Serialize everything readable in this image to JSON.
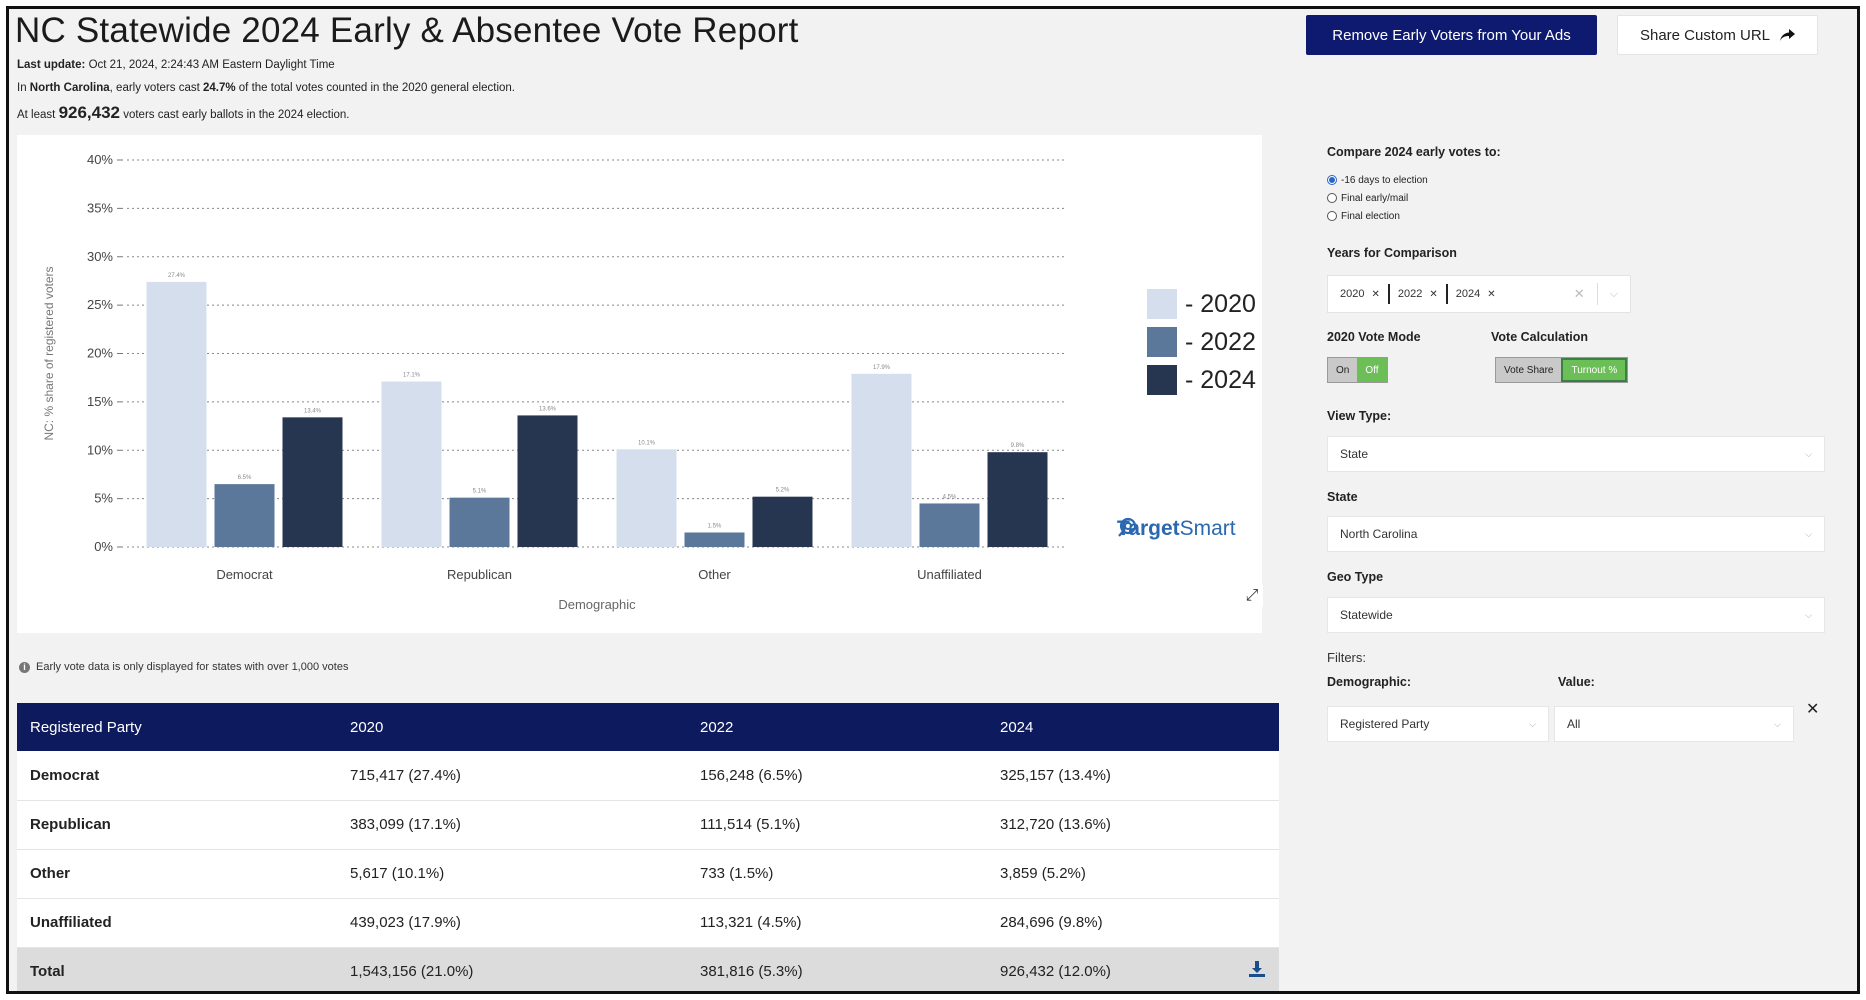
{
  "header": {
    "title": "NC Statewide 2024 Early & Absentee Vote Report",
    "last_update_label": "Last update:",
    "last_update_value": "Oct 21, 2024, 2:24:43 AM Eastern Daylight Time",
    "line2_pre": "In ",
    "line2_state": "North Carolina",
    "line2_mid": ", early voters cast ",
    "line2_pct": "24.7%",
    "line2_post": " of the total votes counted in the 2020 general election.",
    "line3_pre": "At least ",
    "line3_count": "926,432",
    "line3_post": " voters cast early ballots in the 2024 election."
  },
  "toolbar": {
    "remove_label": "Remove Early Voters from Your Ads",
    "share_label": "Share Custom URL",
    "share_icon": "share-arrow-icon"
  },
  "chart_data": {
    "type": "bar",
    "categories": [
      "Democrat",
      "Republican",
      "Other",
      "Unaffiliated"
    ],
    "series": [
      {
        "name": "- 2020",
        "color": "#d5deec",
        "values": [
          27.4,
          17.1,
          10.1,
          17.9
        ],
        "labels": [
          "27.4%",
          "17.1%",
          "10.1%",
          "17.9%"
        ]
      },
      {
        "name": "- 2022",
        "color": "#5b7799",
        "values": [
          6.5,
          5.1,
          1.5,
          4.5
        ],
        "labels": [
          "6.5%",
          "5.1%",
          "1.5%",
          "4.5%"
        ]
      },
      {
        "name": "- 2024",
        "color": "#263550",
        "values": [
          13.4,
          13.6,
          5.2,
          9.8
        ],
        "labels": [
          "13.4%",
          "13.6%",
          "5.2%",
          "9.8%"
        ]
      }
    ],
    "xlabel": "Demographic",
    "ylabel": "NC: % share of registered voters",
    "ylim": [
      0,
      40
    ],
    "yticks": [
      0,
      5,
      10,
      15,
      20,
      25,
      30,
      35,
      40
    ],
    "ytick_labels": [
      "0%",
      "5%",
      "10%",
      "15%",
      "20%",
      "25%",
      "30%",
      "35%",
      "40%"
    ],
    "grid": true,
    "legend_position": "right"
  },
  "chart_extras": {
    "brand_pre": "Target",
    "brand_post": "Smart",
    "brand_icon": "targetsmart-logo-icon",
    "expand_icon": "expand-icon"
  },
  "note": "Early vote data is only displayed for states with over 1,000 votes",
  "table": {
    "headers": [
      "Registered Party",
      "2020",
      "2022",
      "2024"
    ],
    "rows": [
      [
        "Democrat",
        "715,417 (27.4%)",
        "156,248 (6.5%)",
        "325,157 (13.4%)"
      ],
      [
        "Republican",
        "383,099 (17.1%)",
        "111,514 (5.1%)",
        "312,720 (13.6%)"
      ],
      [
        "Other",
        "5,617 (10.1%)",
        "733 (1.5%)",
        "3,859 (5.2%)"
      ],
      [
        "Unaffiliated",
        "439,023 (17.9%)",
        "113,321 (4.5%)",
        "284,696 (9.8%)"
      ]
    ],
    "total": [
      "Total",
      "1,543,156 (21.0%)",
      "381,816 (5.3%)",
      "926,432 (12.0%)"
    ],
    "download_icon": "download-icon"
  },
  "sidebar": {
    "compare_label": "Compare 2024 early votes to:",
    "compare_options": [
      "-16 days to election",
      "Final early/mail",
      "Final election"
    ],
    "compare_selected": 0,
    "years_label": "Years for Comparison",
    "years": [
      "2020",
      "2022",
      "2024"
    ],
    "vote_mode_label": "2020 Vote Mode",
    "vote_mode_on": "On",
    "vote_mode_off": "Off",
    "vote_calc_label": "Vote Calculation",
    "vote_calc_share": "Vote Share",
    "vote_calc_turnout": "Turnout %",
    "view_type_label": "View Type:",
    "view_type_value": "State",
    "state_label": "State",
    "state_value": "North Carolina",
    "geo_type_label": "Geo Type",
    "geo_type_value": "Statewide",
    "filters_label": "Filters:",
    "demographic_label": "Demographic:",
    "demographic_value": "Registered Party",
    "value_label": "Value:",
    "value_value": "All"
  }
}
